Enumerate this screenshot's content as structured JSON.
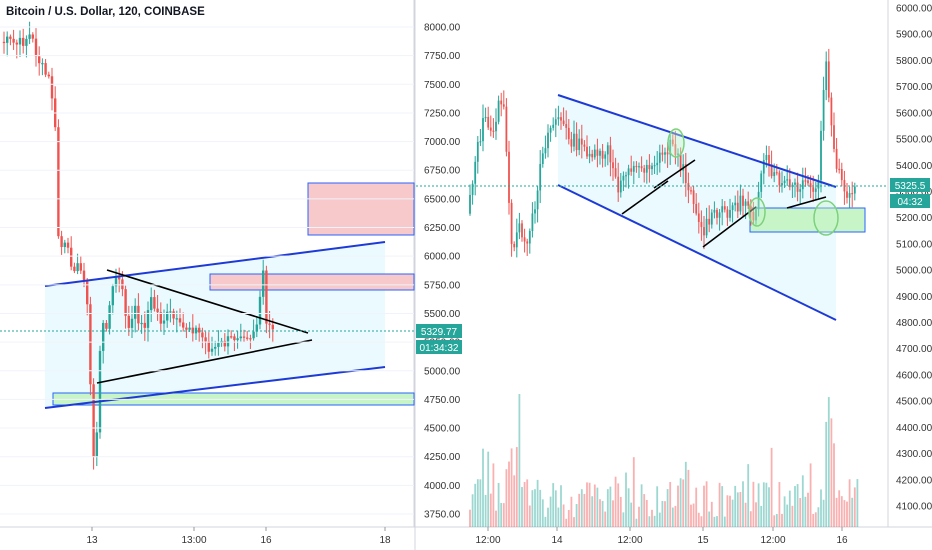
{
  "header": {
    "title": "Bitcoin / U.S. Dollar, 120, COINBASE"
  },
  "chart_data": [
    {
      "type": "candlestick",
      "panel": "left",
      "y_ticks": [
        "8000.00",
        "7750.00",
        "7500.00",
        "7250.00",
        "7000.00",
        "6750.00",
        "6500.00",
        "6250.00",
        "6000.00",
        "5750.00",
        "5500.00",
        "5250.00",
        "5000.00",
        "4750.00",
        "4500.00",
        "4250.00",
        "4000.00",
        "3750.00"
      ],
      "ylim": [
        3650,
        8150
      ],
      "x_ticks": [
        "13",
        "13:00",
        "16",
        "18"
      ],
      "last_price": "5329.77",
      "countdown": "01:34:32",
      "colors": {
        "up": "#26a69a",
        "down": "#ef5350",
        "zone_red": "#f7b3b4",
        "zone_green": "#b9f2b9",
        "channel": "#1e3ad6",
        "channel_fill": "#e6f9ff"
      }
    },
    {
      "type": "candlestick",
      "panel": "right",
      "y_ticks": [
        "6000.00",
        "5900.00",
        "5800.00",
        "5700.00",
        "5600.00",
        "5500.00",
        "5400.00",
        "5300.00",
        "5200.00",
        "5100.00",
        "5000.00",
        "4900.00",
        "4800.00",
        "4700.00",
        "4600.00",
        "4500.00",
        "4400.00",
        "4300.00",
        "4200.00",
        "4100.00"
      ],
      "ylim": [
        4050,
        6020
      ],
      "x_ticks": [
        "12:00",
        "14",
        "12:00",
        "15",
        "12:00",
        "16"
      ],
      "last_price": "5325.5",
      "countdown": "04:32",
      "colors": {
        "up": "#26a69a",
        "down": "#ef5350",
        "zone_green": "#b9f2b9",
        "channel": "#1e3ad6",
        "channel_fill": "#e6f9ff",
        "circle": "#7cd17c"
      }
    }
  ]
}
